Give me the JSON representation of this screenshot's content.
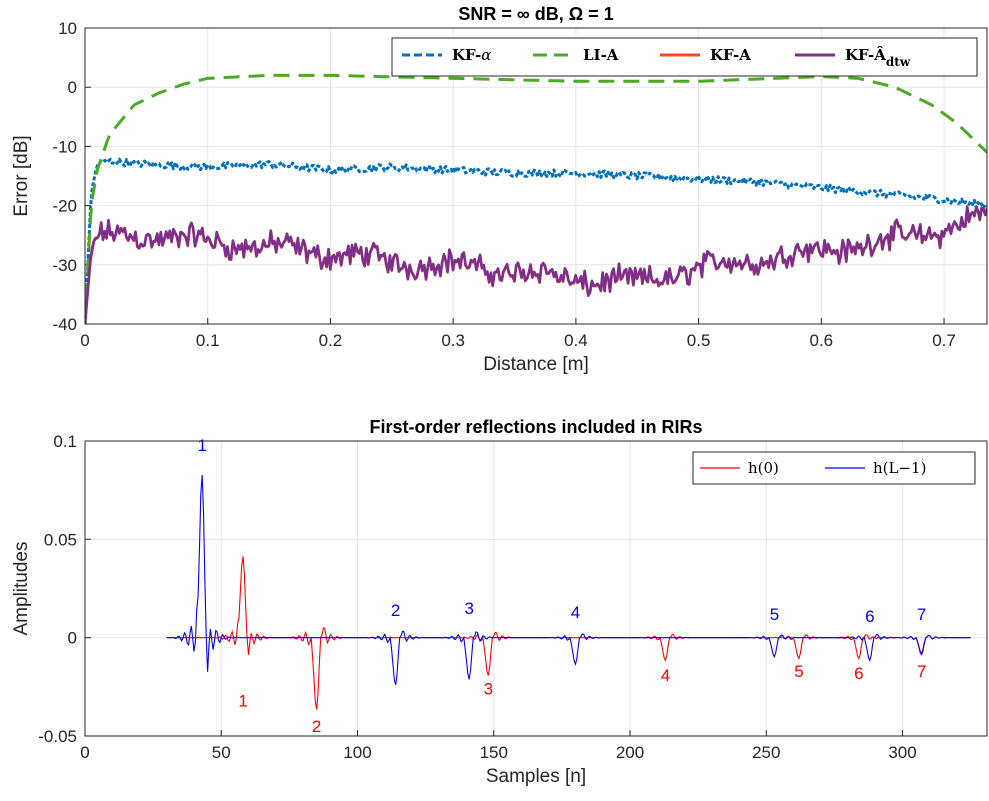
{
  "colors": {
    "kf_alpha": "#0072BD",
    "li_a": "#4DAA26",
    "kf_a": "#E8501E",
    "kf_a_dtw": "#7E2F8E",
    "h0": "#FF0000",
    "hL": "#0000FF"
  },
  "chart_data": [
    {
      "type": "line",
      "title": "SNR = ∞ dB, Ω = 1",
      "xlabel": "Distance [m]",
      "ylabel": "Error [dB]",
      "xlim": [
        0,
        0.735
      ],
      "ylim": [
        -40,
        10
      ],
      "xticks": [
        0,
        0.1,
        0.2,
        0.3,
        0.4,
        0.5,
        0.6,
        0.7
      ],
      "xtick_labels": [
        "0",
        "0.1",
        "0.2",
        "0.3",
        "0.4",
        "0.5",
        "0.6",
        "0.7"
      ],
      "yticks": [
        -40,
        -30,
        -20,
        -10,
        0,
        10
      ],
      "ytick_labels": [
        "-40",
        "-30",
        "-20",
        "-10",
        "0",
        "10"
      ],
      "grid": true,
      "legend_position": "top-right",
      "series": [
        {
          "name": "KF-α",
          "style": "dashed",
          "x": [
            0,
            0.005,
            0.01,
            0.02,
            0.05,
            0.1,
            0.15,
            0.2,
            0.25,
            0.3,
            0.35,
            0.4,
            0.45,
            0.5,
            0.55,
            0.6,
            0.65,
            0.7,
            0.735
          ],
          "y": [
            -40,
            -18,
            -13,
            -12.5,
            -13,
            -13.5,
            -13,
            -14,
            -13.5,
            -14,
            -14.5,
            -14.5,
            -15,
            -15.5,
            -16,
            -17,
            -18,
            -19,
            -20
          ]
        },
        {
          "name": "LI-A",
          "style": "dashed",
          "x": [
            0,
            0.005,
            0.01,
            0.02,
            0.04,
            0.06,
            0.08,
            0.1,
            0.15,
            0.2,
            0.3,
            0.4,
            0.5,
            0.6,
            0.63,
            0.66,
            0.69,
            0.71,
            0.735
          ],
          "y": [
            -40,
            -20,
            -14,
            -8,
            -3,
            -1,
            0.5,
            1.5,
            2,
            2,
            1.5,
            1,
            1,
            1.8,
            1.5,
            0,
            -3,
            -6,
            -11
          ]
        },
        {
          "name": "KF-A",
          "style": "solid",
          "x": [
            0,
            0.005,
            0.01,
            0.03,
            0.05,
            0.1,
            0.15,
            0.2,
            0.25,
            0.3,
            0.35,
            0.4,
            0.45,
            0.5,
            0.55,
            0.6,
            0.65,
            0.7,
            0.735
          ],
          "y": [
            -40,
            -28,
            -26,
            -25.5,
            -25.5,
            -26.5,
            -27.5,
            -28.5,
            -30,
            -30.5,
            -31.5,
            -33,
            -33.5,
            -31,
            -29.5,
            -28,
            -26.5,
            -24.5,
            -22
          ]
        },
        {
          "name": "KF-Âdtw",
          "style": "solid",
          "x": [
            0,
            0.005,
            0.01,
            0.03,
            0.05,
            0.1,
            0.15,
            0.2,
            0.25,
            0.3,
            0.35,
            0.4,
            0.45,
            0.5,
            0.55,
            0.6,
            0.65,
            0.7,
            0.735
          ],
          "y": [
            -40,
            -27.5,
            -25.5,
            -25,
            -25,
            -26,
            -27,
            -28,
            -29.5,
            -30,
            -31,
            -32.5,
            -33,
            -30.5,
            -29,
            -27.5,
            -26,
            -24,
            -21.5
          ]
        }
      ],
      "legend_labels": [
        {
          "base": "KF-",
          "italic": "α",
          "sub": ""
        },
        {
          "base": "LI-A",
          "italic": "",
          "sub": ""
        },
        {
          "base": "KF-A",
          "italic": "",
          "sub": ""
        },
        {
          "base": "KF-Â",
          "italic": "",
          "sub": "dtw"
        }
      ]
    },
    {
      "type": "line",
      "title": "First-order reflections included in RIRs",
      "xlabel": "Samples [n]",
      "ylabel": "Amplitudes",
      "xlim": [
        0,
        331
      ],
      "ylim": [
        -0.05,
        0.1
      ],
      "xticks": [
        0,
        50,
        100,
        150,
        200,
        250,
        300
      ],
      "xtick_labels": [
        "0",
        "50",
        "100",
        "150",
        "200",
        "250",
        "300"
      ],
      "yticks": [
        -0.05,
        0,
        0.05,
        0.1
      ],
      "ytick_labels": [
        "-0.05",
        "0",
        "0.05",
        "0.1"
      ],
      "grid": true,
      "legend_position": "top-right",
      "series": [
        {
          "name": "h(0)",
          "pulse_center": [
            58,
            85,
            148,
            213,
            262,
            284,
            307
          ],
          "pulse_peak": [
            0.043,
            -0.038,
            -0.02,
            -0.012,
            -0.011,
            -0.011,
            -0.008
          ]
        },
        {
          "name": "h(L−1)",
          "pulse_center": [
            43,
            114,
            141,
            180,
            253,
            288,
            307
          ],
          "pulse_peak": [
            0.086,
            -0.025,
            -0.022,
            -0.014,
            -0.01,
            -0.012,
            -0.009
          ]
        }
      ],
      "legend_labels": [
        "h(0)",
        "h(L−1)"
      ],
      "annotations": [
        {
          "text": "1",
          "x": 43,
          "y": 0.095,
          "series": "h(L−1)"
        },
        {
          "text": "2",
          "x": 114,
          "y": 0.011,
          "series": "h(L−1)"
        },
        {
          "text": "3",
          "x": 141,
          "y": 0.012,
          "series": "h(L−1)"
        },
        {
          "text": "4",
          "x": 180,
          "y": 0.01,
          "series": "h(L−1)"
        },
        {
          "text": "5",
          "x": 253,
          "y": 0.009,
          "series": "h(L−1)"
        },
        {
          "text": "6",
          "x": 288,
          "y": 0.008,
          "series": "h(L−1)"
        },
        {
          "text": "7",
          "x": 307,
          "y": 0.009,
          "series": "h(L−1)"
        },
        {
          "text": "1",
          "x": 58,
          "y": -0.035,
          "series": "h(0)"
        },
        {
          "text": "2",
          "x": 85,
          "y": -0.048,
          "series": "h(0)"
        },
        {
          "text": "3",
          "x": 148,
          "y": -0.029,
          "series": "h(0)"
        },
        {
          "text": "4",
          "x": 213,
          "y": -0.022,
          "series": "h(0)"
        },
        {
          "text": "5",
          "x": 262,
          "y": -0.02,
          "series": "h(0)"
        },
        {
          "text": "6",
          "x": 284,
          "y": -0.021,
          "series": "h(0)"
        },
        {
          "text": "7",
          "x": 307,
          "y": -0.02,
          "series": "h(0)"
        }
      ]
    }
  ]
}
